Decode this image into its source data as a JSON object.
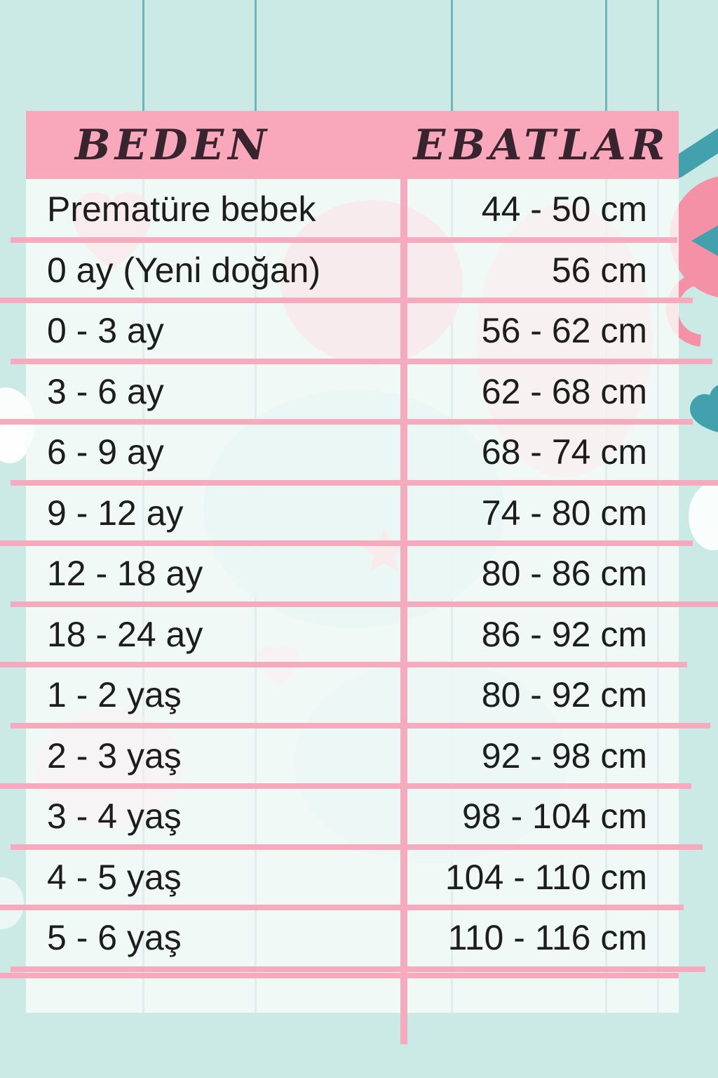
{
  "chart_data": {
    "type": "table",
    "title": "",
    "columns": [
      "BEDEN",
      "EBATLAR"
    ],
    "rows": [
      [
        "Prematüre bebek",
        "44 - 50 cm"
      ],
      [
        "0 ay (Yeni doğan)",
        "56 cm"
      ],
      [
        "0 - 3 ay",
        "56 - 62 cm"
      ],
      [
        "3 - 6 ay",
        "62 - 68 cm"
      ],
      [
        "6 - 9 ay",
        "68 - 74 cm"
      ],
      [
        "9 - 12 ay",
        "74 - 80 cm"
      ],
      [
        "12 - 18 ay",
        "80 - 86 cm"
      ],
      [
        "18 - 24 ay",
        "86 - 92 cm"
      ],
      [
        "1 - 2 yaş",
        "80 - 92 cm"
      ],
      [
        "2 - 3 yaş",
        "92 - 98 cm"
      ],
      [
        "3 - 4 yaş",
        "98 - 104 cm"
      ],
      [
        "4 - 5 yaş",
        "104 - 110 cm"
      ],
      [
        "5 - 6 yaş",
        "110 - 116 cm"
      ]
    ]
  },
  "colors": {
    "background_teal": "#cbeae6",
    "header_pink": "#f8a8ba",
    "line_pink": "#f5aabd",
    "string_teal": "#64abad",
    "accent_teal": "#42a1ad",
    "blob_pink": "#f591a7",
    "text_ink": "#1d1d1d"
  }
}
